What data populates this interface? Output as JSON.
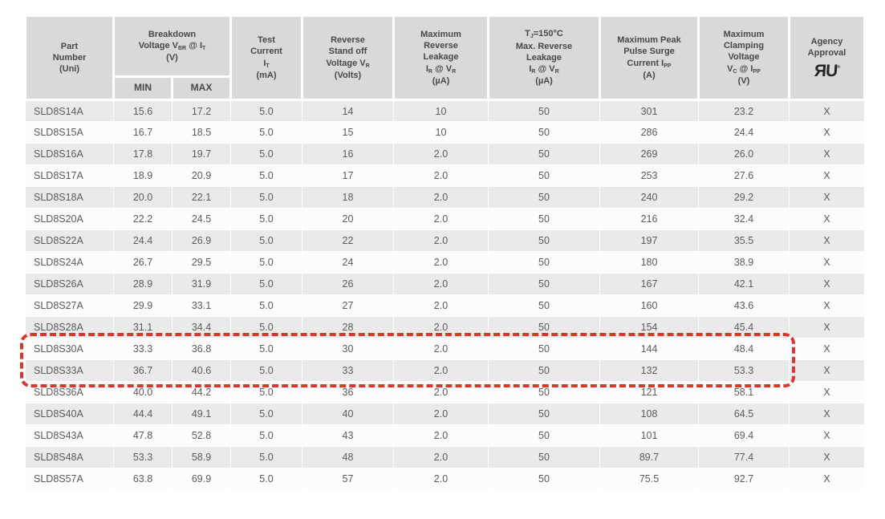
{
  "table": {
    "header": {
      "part_number": [
        [
          "t",
          "Part"
        ],
        [
          "br"
        ],
        [
          "t",
          "Number"
        ],
        [
          "br"
        ],
        [
          "t",
          "(Uni)"
        ]
      ],
      "breakdown": [
        [
          "t",
          "Breakdown"
        ],
        [
          "br"
        ],
        [
          "t",
          "Voltage V"
        ],
        [
          "s",
          "BR"
        ],
        [
          "t",
          " @ I"
        ],
        [
          "s",
          "T"
        ],
        [
          "br"
        ],
        [
          "t",
          "(V)"
        ]
      ],
      "min": [
        [
          "t",
          "MIN"
        ]
      ],
      "max": [
        [
          "t",
          "MAX"
        ]
      ],
      "test_current": [
        [
          "t",
          "Test"
        ],
        [
          "br"
        ],
        [
          "t",
          "Current"
        ],
        [
          "br"
        ],
        [
          "t",
          "I"
        ],
        [
          "s",
          "T"
        ],
        [
          "br"
        ],
        [
          "t",
          "(mA)"
        ]
      ],
      "standoff": [
        [
          "t",
          "Reverse"
        ],
        [
          "br"
        ],
        [
          "t",
          "Stand off"
        ],
        [
          "br"
        ],
        [
          "t",
          "Voltage V"
        ],
        [
          "s",
          "R"
        ],
        [
          "br"
        ],
        [
          "t",
          "(Volts)"
        ]
      ],
      "max_reverse_leakage": [
        [
          "t",
          "Maximum"
        ],
        [
          "br"
        ],
        [
          "t",
          "Reverse"
        ],
        [
          "br"
        ],
        [
          "t",
          "Leakage"
        ],
        [
          "br"
        ],
        [
          "t",
          "I"
        ],
        [
          "s",
          "R"
        ],
        [
          "t",
          " @ V"
        ],
        [
          "s",
          "R"
        ],
        [
          "br"
        ],
        [
          "t",
          "(µA)"
        ]
      ],
      "tj150_reverse_leakage": [
        [
          "t",
          "T"
        ],
        [
          "s",
          "J"
        ],
        [
          "t",
          "=150°C"
        ],
        [
          "br"
        ],
        [
          "t",
          "Max. Reverse"
        ],
        [
          "br"
        ],
        [
          "t",
          "Leakage"
        ],
        [
          "br"
        ],
        [
          "t",
          "I"
        ],
        [
          "s",
          "R"
        ],
        [
          "t",
          " @ V"
        ],
        [
          "s",
          "R"
        ],
        [
          "br"
        ],
        [
          "t",
          "(µA)"
        ]
      ],
      "peak_pulse_current": [
        [
          "t",
          "Maximum Peak"
        ],
        [
          "br"
        ],
        [
          "t",
          "Pulse Surge"
        ],
        [
          "br"
        ],
        [
          "t",
          "Current I"
        ],
        [
          "s",
          "PP"
        ],
        [
          "br"
        ],
        [
          "t",
          "(A)"
        ]
      ],
      "clamping_voltage": [
        [
          "t",
          "Maximum"
        ],
        [
          "br"
        ],
        [
          "t",
          "Clamping"
        ],
        [
          "br"
        ],
        [
          "t",
          "Voltage"
        ],
        [
          "br"
        ],
        [
          "t",
          "V"
        ],
        [
          "s",
          "C"
        ],
        [
          "t",
          " @ I"
        ],
        [
          "s",
          "PP"
        ],
        [
          "br"
        ],
        [
          "t",
          "(V)"
        ]
      ],
      "agency": [
        [
          "t",
          "Agency"
        ],
        [
          "br"
        ],
        [
          "t",
          "Approval"
        ]
      ]
    },
    "ul_mark": "ЯU",
    "ul_mark_reg": "®",
    "rows": [
      [
        "SLD8S14A",
        "15.6",
        "17.2",
        "5.0",
        "14",
        "10",
        "50",
        "301",
        "23.2",
        "X"
      ],
      [
        "SLD8S15A",
        "16.7",
        "18.5",
        "5.0",
        "15",
        "10",
        "50",
        "286",
        "24.4",
        "X"
      ],
      [
        "SLD8S16A",
        "17.8",
        "19.7",
        "5.0",
        "16",
        "2.0",
        "50",
        "269",
        "26.0",
        "X"
      ],
      [
        "SLD8S17A",
        "18.9",
        "20.9",
        "5.0",
        "17",
        "2.0",
        "50",
        "253",
        "27.6",
        "X"
      ],
      [
        "SLD8S18A",
        "20.0",
        "22.1",
        "5.0",
        "18",
        "2.0",
        "50",
        "240",
        "29.2",
        "X"
      ],
      [
        "SLD8S20A",
        "22.2",
        "24.5",
        "5.0",
        "20",
        "2.0",
        "50",
        "216",
        "32.4",
        "X"
      ],
      [
        "SLD8S22A",
        "24.4",
        "26.9",
        "5.0",
        "22",
        "2.0",
        "50",
        "197",
        "35.5",
        "X"
      ],
      [
        "SLD8S24A",
        "26.7",
        "29.5",
        "5.0",
        "24",
        "2.0",
        "50",
        "180",
        "38.9",
        "X"
      ],
      [
        "SLD8S26A",
        "28.9",
        "31.9",
        "5.0",
        "26",
        "2.0",
        "50",
        "167",
        "42.1",
        "X"
      ],
      [
        "SLD8S27A",
        "29.9",
        "33.1",
        "5.0",
        "27",
        "2.0",
        "50",
        "160",
        "43.6",
        "X"
      ],
      [
        "SLD8S28A",
        "31.1",
        "34.4",
        "5.0",
        "28",
        "2.0",
        "50",
        "154",
        "45.4",
        "X"
      ],
      [
        "SLD8S30A",
        "33.3",
        "36.8",
        "5.0",
        "30",
        "2.0",
        "50",
        "144",
        "48.4",
        "X"
      ],
      [
        "SLD8S33A",
        "36.7",
        "40.6",
        "5.0",
        "33",
        "2.0",
        "50",
        "132",
        "53.3",
        "X"
      ],
      [
        "SLD8S36A",
        "40.0",
        "44.2",
        "5.0",
        "36",
        "2.0",
        "50",
        "121",
        "58.1",
        "X"
      ],
      [
        "SLD8S40A",
        "44.4",
        "49.1",
        "5.0",
        "40",
        "2.0",
        "50",
        "108",
        "64.5",
        "X"
      ],
      [
        "SLD8S43A",
        "47.8",
        "52.8",
        "5.0",
        "43",
        "2.0",
        "50",
        "101",
        "69.4",
        "X"
      ],
      [
        "SLD8S48A",
        "53.3",
        "58.9",
        "5.0",
        "48",
        "2.0",
        "50",
        "89.7",
        "77.4",
        "X"
      ],
      [
        "SLD8S57A",
        "63.8",
        "69.9",
        "5.0",
        "57",
        "2.0",
        "50",
        "75.5",
        "92.7",
        "X"
      ]
    ],
    "highlight": {
      "parts": [
        "SLD8S30A",
        "SLD8S33A"
      ],
      "color": "#d9372c"
    },
    "colors": {
      "header_bg": "#d8d9d9",
      "row_odd_bg": "#e9ebeb",
      "row_even_bg": "#fbfcfc",
      "text": "#595b5d",
      "highlight_red": "#d9372c"
    }
  }
}
